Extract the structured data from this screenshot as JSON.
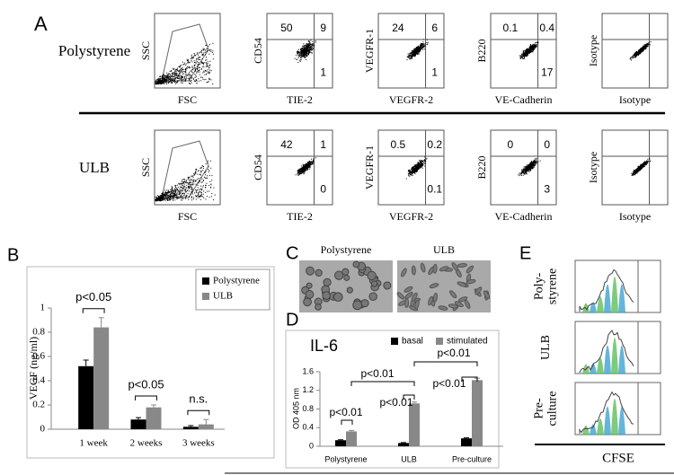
{
  "panel_a": {
    "label": "A",
    "rows": [
      {
        "name": "Polystyrene",
        "plots": [
          {
            "y_label": "SSC",
            "x_label": "FSC"
          },
          {
            "y_label": "CD54",
            "x_label": "TIE-2",
            "quadrants": [
              "50",
              "9",
              "1"
            ]
          },
          {
            "y_label": "VEGFR-1",
            "x_label": "VEGFR-2",
            "quadrants": [
              "24",
              "6",
              "1"
            ]
          },
          {
            "y_label": "B220",
            "x_label": "VE-Cadherin",
            "quadrants": [
              "0.1",
              "0.4",
              "17"
            ]
          },
          {
            "y_label": "Isotype",
            "x_label": "Isotype"
          }
        ]
      },
      {
        "name": "ULB",
        "plots": [
          {
            "y_label": "SSC",
            "x_label": "FSC"
          },
          {
            "y_label": "CD54",
            "x_label": "TIE-2",
            "quadrants": [
              "42",
              "1",
              "0"
            ]
          },
          {
            "y_label": "VEGFR-1",
            "x_label": "VEGFR-2",
            "quadrants": [
              "0.5",
              "0.2",
              "0.1"
            ]
          },
          {
            "y_label": "B220",
            "x_label": "VE-Cadherin",
            "quadrants": [
              "0",
              "0",
              "3"
            ]
          },
          {
            "y_label": "Isotype",
            "x_label": "Isotype"
          }
        ]
      }
    ]
  },
  "panel_c": {
    "label": "C",
    "images": [
      "Polystyrene",
      "ULB"
    ]
  },
  "panel_e": {
    "label": "E",
    "rows": [
      {
        "lines": [
          "Poly-",
          "styrene"
        ]
      },
      {
        "lines": [
          "ULB"
        ]
      },
      {
        "lines": [
          "Pre-",
          "culture"
        ]
      }
    ],
    "x_label": "CFSE"
  },
  "chart_data": [
    {
      "type": "bar",
      "panel": "B",
      "ylabel": "VEGF (ng/ml)",
      "categories": [
        "1 week",
        "2 weeks",
        "3 weeks"
      ],
      "series": [
        {
          "name": "Polystyrene",
          "color": "#000000",
          "values": [
            0.52,
            0.08,
            0.02
          ],
          "errors": [
            0.05,
            0.015,
            0.01
          ]
        },
        {
          "name": "ULB",
          "color": "#888888",
          "values": [
            0.84,
            0.18,
            0.04
          ],
          "errors": [
            0.08,
            0.02,
            0.04
          ]
        }
      ],
      "ylim": [
        0,
        1
      ],
      "yticks": [
        0,
        0.2,
        0.4,
        0.6,
        0.8,
        1
      ],
      "annotations": [
        "p<0.05",
        "p<0.05",
        "n.s."
      ],
      "legend": "top-right"
    },
    {
      "type": "bar",
      "panel": "D",
      "title": "IL-6",
      "ylabel": "OD 405 nm",
      "categories": [
        "Polystyrene",
        "ULB",
        "Pre-culture"
      ],
      "series": [
        {
          "name": "basal",
          "color": "#000000",
          "values": [
            0.13,
            0.07,
            0.17
          ],
          "errors": [
            0.01,
            0.01,
            0.01
          ]
        },
        {
          "name": "stimulated",
          "color": "#888888",
          "values": [
            0.32,
            0.92,
            1.42
          ],
          "errors": [
            0.02,
            0.03,
            0.04
          ]
        }
      ],
      "ylim": [
        0,
        1.6
      ],
      "yticks": [
        0,
        0.4,
        0.8,
        1.2,
        1.6
      ],
      "annotations": [
        "p<0.01",
        "p<0.01",
        "p<0.01",
        "p<0.01",
        "p<0.01"
      ],
      "legend": "top"
    }
  ]
}
